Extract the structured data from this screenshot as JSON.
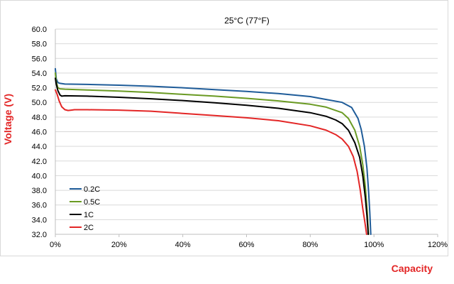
{
  "chart_data": {
    "type": "line",
    "title": "25°C (77°F)",
    "xlabel": "Capacity",
    "ylabel": "Voltage  (V)",
    "axis_title_color": "#e32626",
    "xlim": [
      0,
      120
    ],
    "ylim": [
      32,
      60
    ],
    "x_ticks": [
      0,
      20,
      40,
      60,
      80,
      100,
      120
    ],
    "x_tick_labels": [
      "0%",
      "20%",
      "40%",
      "60%",
      "80%",
      "100%",
      "120%"
    ],
    "y_ticks": [
      32,
      34,
      36,
      38,
      40,
      42,
      44,
      46,
      48,
      50,
      52,
      54,
      56,
      58,
      60
    ],
    "y_tick_labels": [
      "32.0",
      "34.0",
      "36.0",
      "38.0",
      "40.0",
      "42.0",
      "44.0",
      "46.0",
      "48.0",
      "50.0",
      "52.0",
      "54.0",
      "56.0",
      "58.0",
      "60.0"
    ],
    "grid": true,
    "legend_position": "bottom-left",
    "series": [
      {
        "name": "0.2C",
        "color": "#1f5c99",
        "x": [
          0,
          0.3,
          0.8,
          1.5,
          3,
          10,
          20,
          30,
          40,
          50,
          60,
          70,
          80,
          85,
          90,
          93,
          95,
          96,
          97,
          97.8,
          98.3,
          98.7,
          99.0
        ],
        "y": [
          54.6,
          53.2,
          52.7,
          52.6,
          52.5,
          52.45,
          52.35,
          52.2,
          52.0,
          51.75,
          51.5,
          51.2,
          50.8,
          50.4,
          50.0,
          49.3,
          47.8,
          46.3,
          44.0,
          41.0,
          38.0,
          35.0,
          32.0
        ]
      },
      {
        "name": "0.5C",
        "color": "#6a9a23",
        "x": [
          0,
          0.3,
          0.8,
          1.5,
          3,
          10,
          20,
          30,
          40,
          50,
          60,
          70,
          80,
          85,
          90,
          92,
          94,
          95.5,
          96.5,
          97.3,
          97.9,
          98.3
        ],
        "y": [
          54.0,
          52.8,
          52.0,
          51.85,
          51.8,
          51.7,
          51.55,
          51.35,
          51.1,
          50.85,
          50.55,
          50.2,
          49.75,
          49.35,
          48.6,
          47.8,
          46.2,
          44.0,
          41.5,
          38.5,
          35.0,
          32.0
        ]
      },
      {
        "name": "1C",
        "color": "#000000",
        "x": [
          0,
          0.3,
          0.8,
          1.5,
          2.0,
          3,
          10,
          20,
          30,
          40,
          50,
          60,
          70,
          80,
          85,
          88,
          90,
          92,
          94,
          95.5,
          96.5,
          97.3,
          97.8,
          98.2
        ],
        "y": [
          53.3,
          52.5,
          51.6,
          51.0,
          50.85,
          50.9,
          50.85,
          50.7,
          50.5,
          50.25,
          49.95,
          49.6,
          49.2,
          48.6,
          48.1,
          47.6,
          47.1,
          46.2,
          44.5,
          42.5,
          40.0,
          37.0,
          34.5,
          32.0
        ]
      },
      {
        "name": "2C",
        "color": "#e32626",
        "x": [
          0,
          0.5,
          1.2,
          2.0,
          3.0,
          4.0,
          5.0,
          6.0,
          10,
          20,
          30,
          40,
          50,
          60,
          70,
          80,
          85,
          88,
          90,
          92,
          93.5,
          94.7,
          95.7,
          96.5,
          97.2,
          97.7
        ],
        "y": [
          51.7,
          51.2,
          50.2,
          49.4,
          49.0,
          48.9,
          48.95,
          49.0,
          49.0,
          48.95,
          48.8,
          48.5,
          48.2,
          47.9,
          47.5,
          46.8,
          46.2,
          45.6,
          45.0,
          44.0,
          42.6,
          40.6,
          38.0,
          35.5,
          33.5,
          32.0
        ]
      }
    ]
  }
}
